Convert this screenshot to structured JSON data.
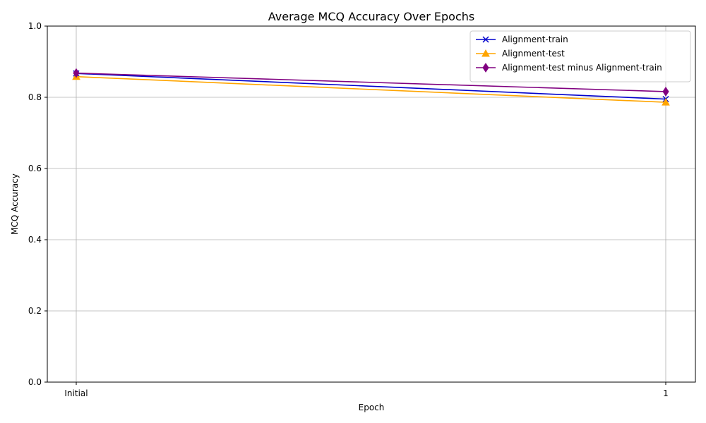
{
  "chart_data": {
    "type": "line",
    "title": "Average MCQ Accuracy Over Epochs",
    "xlabel": "Epoch",
    "ylabel": "MCQ Accuracy",
    "categories": [
      "Initial",
      "1"
    ],
    "ylim": [
      0.0,
      1.0
    ],
    "yticks": [
      "0.0",
      "0.2",
      "0.4",
      "0.6",
      "0.8",
      "1.0"
    ],
    "grid": true,
    "legend_position": "top-right",
    "series": [
      {
        "name": "Alignment-train",
        "values": [
          0.867,
          0.795
        ],
        "color": "#0000cd",
        "marker": "x"
      },
      {
        "name": "Alignment-test",
        "values": [
          0.858,
          0.786
        ],
        "color": "#ffa500",
        "marker": "triangle"
      },
      {
        "name": "Alignment-test minus Alignment-train",
        "values": [
          0.868,
          0.816
        ],
        "color": "#800080",
        "marker": "diamond"
      }
    ]
  }
}
